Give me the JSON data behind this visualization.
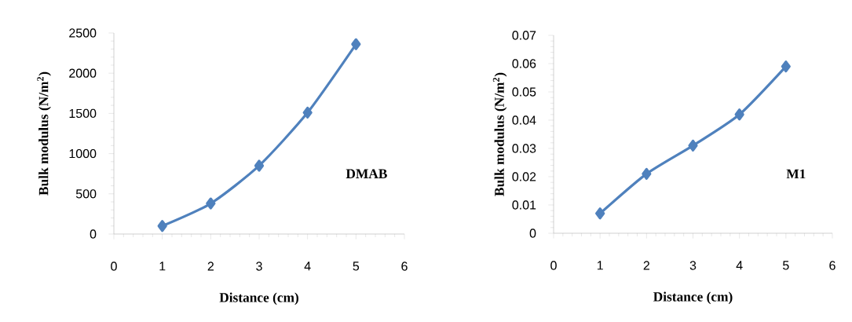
{
  "chart_data": [
    {
      "type": "line",
      "xlabel": "Distance (cm)",
      "ylabel": "Bulk modulus (N/m$^{2}$)",
      "annotations": [
        "DMAB"
      ],
      "x": [
        1,
        2,
        3,
        4,
        5
      ],
      "series": [
        {
          "color": "#4f81bd",
          "values": [
            100,
            380,
            850,
            1510,
            2360
          ]
        }
      ],
      "xlim": [
        0,
        6
      ],
      "xticks": [
        0,
        1,
        2,
        3,
        4,
        5,
        6
      ],
      "ylim": [
        0,
        2500
      ],
      "yticks": [
        0,
        500,
        1000,
        1500,
        2000,
        2500
      ],
      "marker": "diamond",
      "line_style": "solid",
      "grid": false
    },
    {
      "type": "line",
      "xlabel": "Distance (cm)",
      "ylabel": "Bulk modulus (N/m$^{2}$)",
      "annotations": [
        "M1"
      ],
      "x": [
        1,
        2,
        3,
        4,
        5
      ],
      "series": [
        {
          "color": "#4f81bd",
          "values": [
            0.007,
            0.021,
            0.031,
            0.042,
            0.059
          ]
        }
      ],
      "xlim": [
        0,
        6
      ],
      "xticks": [
        0,
        1,
        2,
        3,
        4,
        5,
        6
      ],
      "ylim": [
        0,
        0.07
      ],
      "yticks": [
        0,
        0.01,
        0.02,
        0.03,
        0.04,
        0.05,
        0.06,
        0.07
      ],
      "marker": "diamond",
      "line_style": "solid",
      "grid": false
    }
  ]
}
